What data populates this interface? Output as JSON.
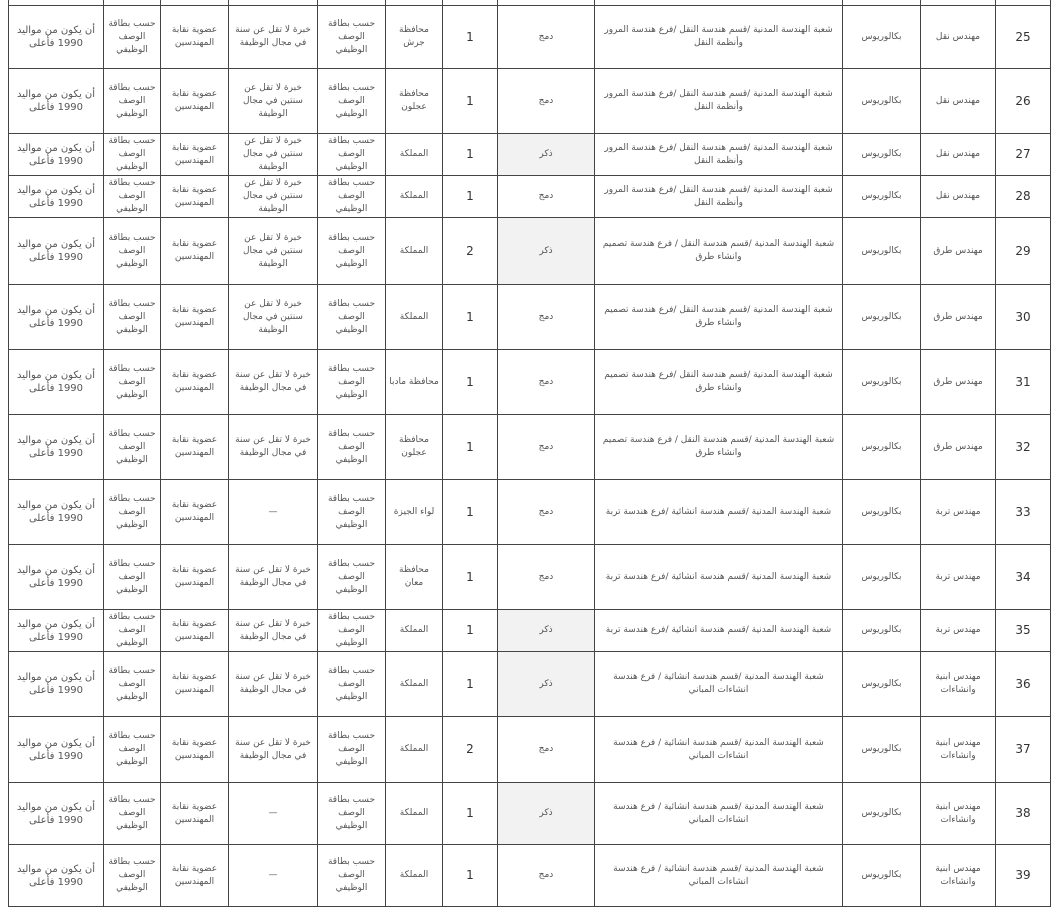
{
  "rows": [
    {
      "no": "25",
      "title": "مهندس نقل",
      "degree": "بكالوريوس",
      "spec": "شعبة الهندسة المدنية /قسم هندسة النقل /فرع هندسة المرور وأنظمة النقل",
      "gender": "دمج",
      "count": "1",
      "location": "محافظة جرش",
      "card": "حسب بطاقة الوصف الوظيفي",
      "experience": "خبرة لا تقل عن سنة في مجال الوظيفة",
      "membership": "عضوية نقابة المهندسين",
      "card2": "حسب بطاقة الوصف الوظيفي",
      "age": "أن يكون من مواليد 1990 فأعلى"
    },
    {
      "no": "26",
      "title": "مهندس نقل",
      "degree": "بكالوريوس",
      "spec": "شعبة الهندسة المدنية /قسم هندسة النقل /فرع هندسة المرور وأنظمة النقل",
      "gender": "دمج",
      "count": "1",
      "location": "محافظة عجلون",
      "card": "حسب بطاقة الوصف الوظيفي",
      "experience": "خبرة لا تقل عن سنتين في مجال الوظيفة",
      "membership": "عضوية نقابة المهندسين",
      "card2": "حسب بطاقة الوصف الوظيفي",
      "age": "أن يكون من مواليد 1990 فأعلى"
    },
    {
      "no": "27",
      "title": "مهندس نقل",
      "degree": "بكالوريوس",
      "spec": "شعبة الهندسة المدنية /قسم هندسة النقل /فرع هندسة المرور وأنظمة النقل",
      "gender": "ذكر",
      "count": "1",
      "location": "المملكة",
      "card": "حسب بطاقة الوصف الوظيفي",
      "experience": "خبرة لا تقل عن سنتين في مجال الوظيفة",
      "membership": "عضوية نقابة المهندسين",
      "card2": "حسب بطاقة الوصف الوظيفي",
      "age": "أن يكون من مواليد 1990 فأعلى"
    },
    {
      "no": "28",
      "title": "مهندس نقل",
      "degree": "بكالوريوس",
      "spec": "شعبة الهندسة المدنية /قسم هندسة النقل /فرع هندسة المرور وأنظمة النقل",
      "gender": "دمج",
      "count": "1",
      "location": "المملكة",
      "card": "حسب بطاقة الوصف الوظيفي",
      "experience": "خبرة لا تقل عن سنتين في مجال الوظيفة",
      "membership": "عضوية نقابة المهندسين",
      "card2": "حسب بطاقة الوصف الوظيفي",
      "age": "أن يكون من مواليد 1990 فأعلى"
    },
    {
      "no": "29",
      "title": "مهندس طرق",
      "degree": "بكالوريوس",
      "spec": "شعبة الهندسة المدنية /قسم هندسة النقل / فرع هندسة تصميم وانشاء طرق",
      "gender": "ذكر",
      "count": "2",
      "location": "المملكة",
      "card": "حسب بطاقة الوصف الوظيفي",
      "experience": "خبرة لا تقل عن سنتين في مجال الوظيفة",
      "membership": "عضوية نقابة المهندسين",
      "card2": "حسب بطاقة الوصف الوظيفي",
      "age": "أن يكون من مواليد 1990 فأعلى"
    },
    {
      "no": "30",
      "title": "مهندس طرق",
      "degree": "بكالوريوس",
      "spec": "شعبة الهندسة المدنية /قسم هندسة النقل /فرع هندسة تصميم وانشاء طرق",
      "gender": "دمج",
      "count": "1",
      "location": "المملكة",
      "card": "حسب بطاقة الوصف الوظيفي",
      "experience": "خبرة لا تقل عن سنتين في مجال الوظيفة",
      "membership": "عضوية نقابة المهندسين",
      "card2": "حسب بطاقة الوصف الوظيفي",
      "age": "أن يكون من مواليد 1990 فأعلى"
    },
    {
      "no": "31",
      "title": "مهندس طرق",
      "degree": "بكالوريوس",
      "spec": "شعبة الهندسة المدنية /قسم هندسة النقل /فرع هندسة تصميم وانشاء طرق",
      "gender": "دمج",
      "count": "1",
      "location": "محافظة مادبا",
      "card": "حسب بطاقة الوصف الوظيفي",
      "experience": "خبرة لا تقل عن سنة في مجال الوظيفة",
      "membership": "عضوية نقابة المهندسين",
      "card2": "حسب بطاقة الوصف الوظيفي",
      "age": "أن يكون من مواليد 1990 فأعلى"
    },
    {
      "no": "32",
      "title": "مهندس طرق",
      "degree": "بكالوريوس",
      "spec": "شعبة الهندسة المدنية /قسم هندسة النقل / فرع هندسة تصميم وانشاء طرق",
      "gender": "دمج",
      "count": "1",
      "location": "محافظة عجلون",
      "card": "حسب بطاقة الوصف الوظيفي",
      "experience": "خبرة لا تقل عن سنة في مجال الوظيفة",
      "membership": "عضوية نقابة المهندسين",
      "card2": "حسب بطاقة الوصف الوظيفي",
      "age": "أن يكون من مواليد 1990 فأعلى"
    },
    {
      "no": "33",
      "title": "مهندس تربة",
      "degree": "بكالوريوس",
      "spec": "شعبة الهندسة المدنية /قسم هندسة انشائية /فرع هندسة تربة",
      "gender": "دمج",
      "count": "1",
      "location": "لواء الجيزة",
      "card": "حسب بطاقة الوصف الوظيفي",
      "experience": "—",
      "membership": "عضوية نقابة المهندسين",
      "card2": "حسب بطاقة الوصف الوظيفي",
      "age": "أن يكون من مواليد 1990 فأعلى"
    },
    {
      "no": "34",
      "title": "مهندس تربة",
      "degree": "بكالوريوس",
      "spec": "شعبة الهندسة المدنية /قسم هندسة انشائية /فرع هندسة تربة",
      "gender": "دمج",
      "count": "1",
      "location": "محافظة معان",
      "card": "حسب بطاقة الوصف الوظيفي",
      "experience": "خبرة لا تقل عن سنة في مجال الوظيفة",
      "membership": "عضوية نقابة المهندسين",
      "card2": "حسب بطاقة الوصف الوظيفي",
      "age": "أن يكون من مواليد 1990 فأعلى"
    },
    {
      "no": "35",
      "title": "مهندس تربة",
      "degree": "بكالوريوس",
      "spec": "شعبة الهندسة المدنية /قسم هندسة انشائية /فرع هندسة تربة",
      "gender": "ذكر",
      "count": "1",
      "location": "المملكة",
      "card": "حسب بطاقة الوصف الوظيفي",
      "experience": "خبرة لا تقل عن سنة في مجال الوظيفة",
      "membership": "عضوية نقابة المهندسين",
      "card2": "حسب بطاقة الوصف الوظيفي",
      "age": "أن يكون من مواليد 1990 فأعلى"
    },
    {
      "no": "36",
      "title": "مهندس ابنية وانشاءات",
      "degree": "بكالوريوس",
      "spec": "شعبة الهندسة المدنية /قسم هندسة انشائية / فرع هندسة انشاءات المباني",
      "gender": "ذكر",
      "count": "1",
      "location": "المملكة",
      "card": "حسب بطاقة الوصف الوظيفي",
      "experience": "خبرة لا تقل عن سنة في مجال الوظيفة",
      "membership": "عضوية نقابة المهندسين",
      "card2": "حسب بطاقة الوصف الوظيفي",
      "age": "أن يكون من مواليد 1990 فأعلى"
    },
    {
      "no": "37",
      "title": "مهندس ابنية وانشاءات",
      "degree": "بكالوريوس",
      "spec": "شعبة الهندسة المدنية /قسم هندسة انشائية / فرع هندسة انشاءات المباني",
      "gender": "دمج",
      "count": "2",
      "location": "المملكة",
      "card": "حسب بطاقة الوصف الوظيفي",
      "experience": "خبرة لا تقل عن سنة في مجال الوظيفة",
      "membership": "عضوية نقابة المهندسين",
      "card2": "حسب بطاقة الوصف الوظيفي",
      "age": "أن يكون من مواليد 1990 فأعلى"
    },
    {
      "no": "38",
      "title": "مهندس ابنية وانشاءات",
      "degree": "بكالوريوس",
      "spec": "شعبة الهندسة المدنية /قسم هندسة انشائية / فرع هندسة انشاءات المباني",
      "gender": "ذكر",
      "count": "1",
      "location": "المملكة",
      "card": "حسب بطاقة الوصف الوظيفي",
      "experience": "—",
      "membership": "عضوية نقابة المهندسين",
      "card2": "حسب بطاقة الوصف الوظيفي",
      "age": "أن يكون من مواليد 1990 فأعلى"
    },
    {
      "no": "39",
      "title": "مهندس ابنية وانشاءات",
      "degree": "بكالوريوس",
      "spec": "شعبة الهندسة المدنية /قسم هندسة انشائية / فرع هندسة انشاءات المباني",
      "gender": "دمج",
      "count": "1",
      "location": "المملكة",
      "card": "حسب بطاقة الوصف الوظيفي",
      "experience": "—",
      "membership": "عضوية نقابة المهندسين",
      "card2": "حسب بطاقة الوصف الوظيفي",
      "age": "أن يكون من مواليد 1990 فأعلى"
    }
  ],
  "colors": {
    "male_cell_bg": "#f2f2f2",
    "border": "#444444"
  }
}
